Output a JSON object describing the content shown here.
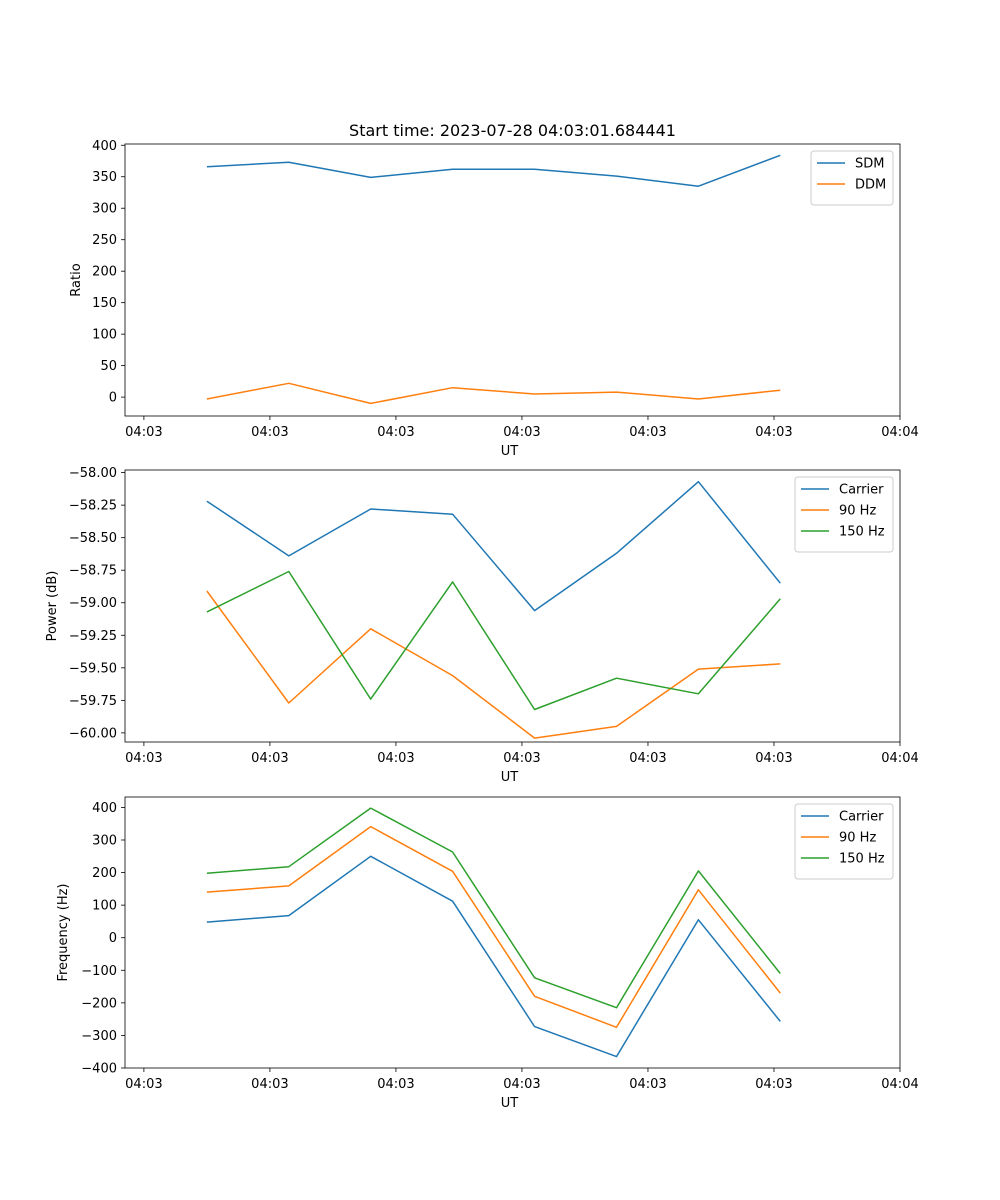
{
  "chart_data": [
    {
      "type": "line",
      "title": "Start time: 2023-07-28 04:03:01.684441",
      "xlabel": "UT",
      "ylabel": "Ratio",
      "x": [
        0.5,
        1.15,
        1.8,
        2.45,
        3.1,
        3.75,
        4.4,
        5.05
      ],
      "xlim": [
        -0.15,
        6.0
      ],
      "xticks": [
        0,
        1,
        2,
        3,
        4,
        5,
        6
      ],
      "xtick_labels": [
        "04:03",
        "04:03",
        "04:03",
        "04:03",
        "04:03",
        "04:03",
        "04:04"
      ],
      "ylim": [
        -30,
        402
      ],
      "yticks": [
        0,
        50,
        100,
        150,
        200,
        250,
        300,
        350,
        400
      ],
      "ytick_labels": [
        "0",
        "50",
        "100",
        "150",
        "200",
        "250",
        "300",
        "350",
        "400"
      ],
      "legend_position": "top-right",
      "series": [
        {
          "name": "SDM",
          "color": "#1f77b4",
          "values": [
            366,
            373,
            349,
            362,
            362,
            351,
            335,
            384
          ]
        },
        {
          "name": "DDM",
          "color": "#ff7f0e",
          "values": [
            -3,
            22,
            -10,
            15,
            5,
            8,
            -3,
            11
          ]
        }
      ]
    },
    {
      "type": "line",
      "title": "",
      "xlabel": "UT",
      "ylabel": "Power (dB)",
      "x": [
        0.5,
        1.15,
        1.8,
        2.45,
        3.1,
        3.75,
        4.4,
        5.05
      ],
      "xlim": [
        -0.15,
        6.0
      ],
      "xticks": [
        0,
        1,
        2,
        3,
        4,
        5,
        6
      ],
      "xtick_labels": [
        "04:03",
        "04:03",
        "04:03",
        "04:03",
        "04:03",
        "04:03",
        "04:04"
      ],
      "ylim": [
        -60.07,
        -57.98
      ],
      "yticks": [
        -58.0,
        -58.25,
        -58.5,
        -58.75,
        -59.0,
        -59.25,
        -59.5,
        -59.75,
        -60.0
      ],
      "ytick_labels": [
        "−58.00",
        "−58.25",
        "−58.50",
        "−58.75",
        "−59.00",
        "−59.25",
        "−59.50",
        "−59.75",
        "−60.00"
      ],
      "legend_position": "top-right",
      "series": [
        {
          "name": "Carrier",
          "color": "#1f77b4",
          "values": [
            -58.22,
            -58.64,
            -58.28,
            -58.32,
            -59.06,
            -58.62,
            -58.07,
            -58.85
          ]
        },
        {
          "name": "90 Hz",
          "color": "#ff7f0e",
          "values": [
            -58.91,
            -59.77,
            -59.2,
            -59.56,
            -60.04,
            -59.95,
            -59.51,
            -59.47
          ]
        },
        {
          "name": "150 Hz",
          "color": "#2ca02c",
          "values": [
            -59.07,
            -58.76,
            -59.74,
            -58.84,
            -59.82,
            -59.58,
            -59.7,
            -58.97
          ]
        }
      ]
    },
    {
      "type": "line",
      "title": "",
      "xlabel": "UT",
      "ylabel": "Frequency (Hz)",
      "x": [
        0.5,
        1.15,
        1.8,
        2.45,
        3.1,
        3.75,
        4.4,
        5.05
      ],
      "xlim": [
        -0.15,
        6.0
      ],
      "xticks": [
        0,
        1,
        2,
        3,
        4,
        5,
        6
      ],
      "xtick_labels": [
        "04:03",
        "04:03",
        "04:03",
        "04:03",
        "04:03",
        "04:03",
        "04:04"
      ],
      "ylim": [
        -400,
        432
      ],
      "yticks": [
        400,
        300,
        200,
        100,
        0,
        -100,
        -200,
        -300,
        -400
      ],
      "ytick_labels": [
        "400",
        "300",
        "200",
        "100",
        "0",
        "−100",
        "−200",
        "−300",
        "−400"
      ],
      "legend_position": "top-right",
      "series": [
        {
          "name": "Carrier",
          "color": "#1f77b4",
          "values": [
            48,
            68,
            250,
            112,
            -273,
            -365,
            55,
            -257
          ]
        },
        {
          "name": "90 Hz",
          "color": "#ff7f0e",
          "values": [
            140,
            159,
            341,
            204,
            -180,
            -275,
            147,
            -170
          ]
        },
        {
          "name": "150 Hz",
          "color": "#2ca02c",
          "values": [
            198,
            218,
            398,
            263,
            -123,
            -215,
            205,
            -110
          ]
        }
      ]
    }
  ]
}
